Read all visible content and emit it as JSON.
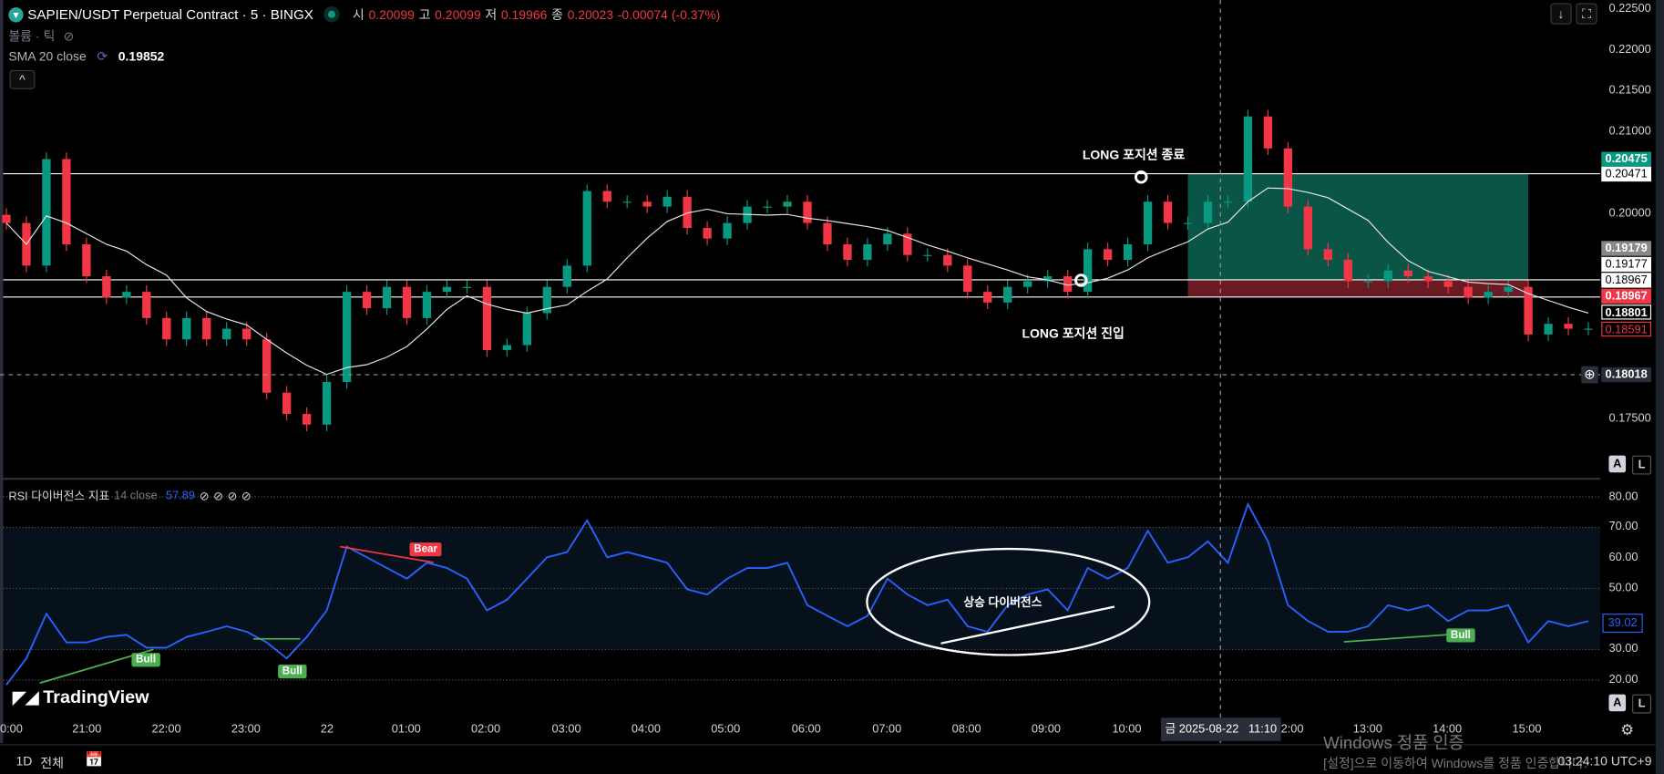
{
  "header": {
    "symbol": "SAPIEN/USDT Perpetual Contract · 5 · BINGX",
    "open_label": "시",
    "open": "0.20099",
    "high_label": "고",
    "high": "0.20099",
    "low_label": "저",
    "low": "0.19966",
    "close_label": "종",
    "close": "0.20023",
    "change": "-0.00074 (-0.37%)",
    "volume_legend": "볼륨 · 틱",
    "sma_legend": "SMA 20 close",
    "sma_value": "0.19852",
    "collapse_icon": "chevron-up-icon"
  },
  "rsi_legend": {
    "title": "RSI 다이버전스 지표",
    "params": "14 close",
    "value": "57.89"
  },
  "annotations": {
    "long_exit": "LONG 포지션 종료",
    "long_entry": "LONG 포지션 진입",
    "bull_divergence": "상승 다이버전스",
    "bull": "Bull",
    "bear": "Bear"
  },
  "price_axis": {
    "ticks": [
      "0.22500",
      "0.22000",
      "0.21500",
      "0.21000",
      "0.20000",
      "0.17500"
    ],
    "badges": {
      "target": "0.20475",
      "target_line": "0.20471",
      "entry": "0.19179",
      "line_1": "0.19177",
      "line_2": "0.18967",
      "stop": "0.18967",
      "sma": "0.18801",
      "last": "0.18591",
      "crosshair": "0.18018"
    }
  },
  "rsi_axis": {
    "ticks": [
      "80.00",
      "70.00",
      "60.00",
      "50.00",
      "30.00",
      "20.00"
    ],
    "current": "39.02"
  },
  "time_axis": {
    "labels": [
      "0:00",
      "21:00",
      "22:00",
      "23:00",
      "22",
      "01:00",
      "02:00",
      "03:00",
      "04:00",
      "05:00",
      "06:00",
      "07:00",
      "08:00",
      "09:00",
      "10:00",
      "2:00",
      "13:00",
      "14:00",
      "15:00"
    ],
    "crosshair": "금 2025-08-22   11:10"
  },
  "bottom_bar": {
    "range_1d": "1D",
    "range_all": "전체",
    "clock": "03:24:10 UTC+9"
  },
  "watermark": {
    "title": "Windows 정품 인증",
    "subtitle": "[설정]으로 이동하여 Windows를 정품 인증합니다."
  },
  "logo": "TradingView",
  "buttons": {
    "auto": "A",
    "log": "L",
    "scroll_icon": "arrow-down-icon",
    "fullscreen_icon": "fullscreen-icon"
  },
  "colors": {
    "up": "#089981",
    "down": "#f23645",
    "sma": "#e6e6e6",
    "rsi": "#2962ff",
    "bull": "#4caf50",
    "bear": "#f23645",
    "profit_zone": "#0b5546",
    "loss_zone": "#6a1a22"
  },
  "chart_data": {
    "type": "candlestick",
    "interval": "5",
    "times": [
      "20:00",
      "20:15",
      "20:30",
      "20:45",
      "21:00",
      "21:15",
      "21:30",
      "21:45",
      "22:00",
      "22:15",
      "22:30",
      "22:45",
      "23:00",
      "23:15",
      "23:30",
      "23:45",
      "00:00",
      "00:15",
      "00:30",
      "00:45",
      "01:00",
      "01:15",
      "01:30",
      "01:45",
      "02:00",
      "02:15",
      "02:30",
      "02:45",
      "03:00",
      "03:15",
      "03:30",
      "03:45",
      "04:00",
      "04:15",
      "04:30",
      "04:45",
      "05:00",
      "05:15",
      "05:30",
      "05:45",
      "06:00",
      "06:15",
      "06:30",
      "06:45",
      "07:00",
      "07:15",
      "07:30",
      "07:45",
      "08:00",
      "08:15",
      "08:30",
      "08:45",
      "09:00",
      "09:15",
      "09:30",
      "09:45",
      "10:00",
      "10:15",
      "10:30",
      "10:45",
      "11:00",
      "11:15",
      "11:30",
      "11:45",
      "12:00",
      "12:15",
      "12:30",
      "12:45",
      "13:00",
      "13:15",
      "13:30",
      "13:45",
      "14:00",
      "14:15",
      "14:30",
      "14:45",
      "15:00",
      "15:15",
      "15:30",
      "15:45"
    ],
    "close": [
      0.1987,
      0.1935,
      0.2065,
      0.1961,
      0.1922,
      0.1896,
      0.1903,
      0.1871,
      0.1845,
      0.1871,
      0.1845,
      0.1858,
      0.1845,
      0.178,
      0.1754,
      0.1741,
      0.1793,
      0.1903,
      0.1883,
      0.1909,
      0.1871,
      0.1903,
      0.1909,
      0.1909,
      0.1832,
      0.1838,
      0.1877,
      0.1909,
      0.1935,
      0.2026,
      0.2013,
      0.2013,
      0.2007,
      0.2019,
      0.1981,
      0.1968,
      0.1987,
      0.2007,
      0.2007,
      0.2013,
      0.1987,
      0.1961,
      0.1942,
      0.1961,
      0.1974,
      0.1948,
      0.1948,
      0.1935,
      0.1903,
      0.189,
      0.1909,
      0.1916,
      0.1922,
      0.1903,
      0.1955,
      0.1942,
      0.1961,
      0.2013,
      0.1987,
      0.1987,
      0.2013,
      0.2013,
      0.2117,
      0.2078,
      0.2007,
      0.1955,
      0.1942,
      0.1916,
      0.1916,
      0.1929,
      0.1922,
      0.1916,
      0.1909,
      0.1896,
      0.1903,
      0.1909,
      0.1851,
      0.1864,
      0.1858,
      0.1858
    ],
    "sma_period": 20,
    "ylim": [
      0.175,
      0.225
    ],
    "rsi": {
      "period": 14,
      "values": [
        18.4,
        27.1,
        41.7,
        32.3,
        32.3,
        34.1,
        34.8,
        30.6,
        30.6,
        34.1,
        35.8,
        37.6,
        35.8,
        32.3,
        27.1,
        34.1,
        42.8,
        63.7,
        60.2,
        56.7,
        53.2,
        58.4,
        56.7,
        53.2,
        42.8,
        46.3,
        53.2,
        60.2,
        61.9,
        72.3,
        60.2,
        61.9,
        60.2,
        58.4,
        49.7,
        48.0,
        53.2,
        56.7,
        56.7,
        58.4,
        44.5,
        41.0,
        37.6,
        41.0,
        53.2,
        48.0,
        44.5,
        46.3,
        37.6,
        35.8,
        44.5,
        48.0,
        49.7,
        42.8,
        56.7,
        53.2,
        56.7,
        68.9,
        58.4,
        60.2,
        65.4,
        58.4,
        77.6,
        65.4,
        44.5,
        39.3,
        35.8,
        35.8,
        37.6,
        44.5,
        42.8,
        44.5,
        39.3,
        42.8,
        42.8,
        44.5,
        32.3,
        39.3,
        37.6,
        39.3
      ],
      "ylim": [
        15,
        82
      ],
      "band": [
        30,
        70
      ],
      "divergences": [
        {
          "type": "bull",
          "from": [
            "20:25",
            19
          ],
          "to": [
            "21:50",
            30
          ]
        },
        {
          "type": "bull",
          "from": [
            "23:05",
            33.5
          ],
          "to": [
            "23:40",
            33.5
          ]
        },
        {
          "type": "bear",
          "from": [
            "00:10",
            63.7
          ],
          "to": [
            "01:20",
            58.5
          ]
        },
        {
          "type": "bull",
          "from": [
            "12:42",
            32.5
          ],
          "to": [
            "14:05",
            35
          ]
        },
        {
          "type": "drawn",
          "from": [
            "07:40",
            32
          ],
          "to": [
            "09:50",
            44
          ]
        }
      ]
    },
    "horizontal_lines": [
      0.20471,
      0.19177,
      0.18967
    ],
    "position": {
      "side": "long",
      "start": "10:45",
      "end": "15:00",
      "entry": 0.19179,
      "target": 0.20475,
      "stop": 0.18967
    },
    "markers": [
      {
        "kind": "exit",
        "time": "10:10",
        "price": 0.2043
      },
      {
        "kind": "entry",
        "time": "09:25",
        "price": 0.1917
      }
    ],
    "crosshair": {
      "time": "11:10",
      "price": 0.18018
    }
  }
}
